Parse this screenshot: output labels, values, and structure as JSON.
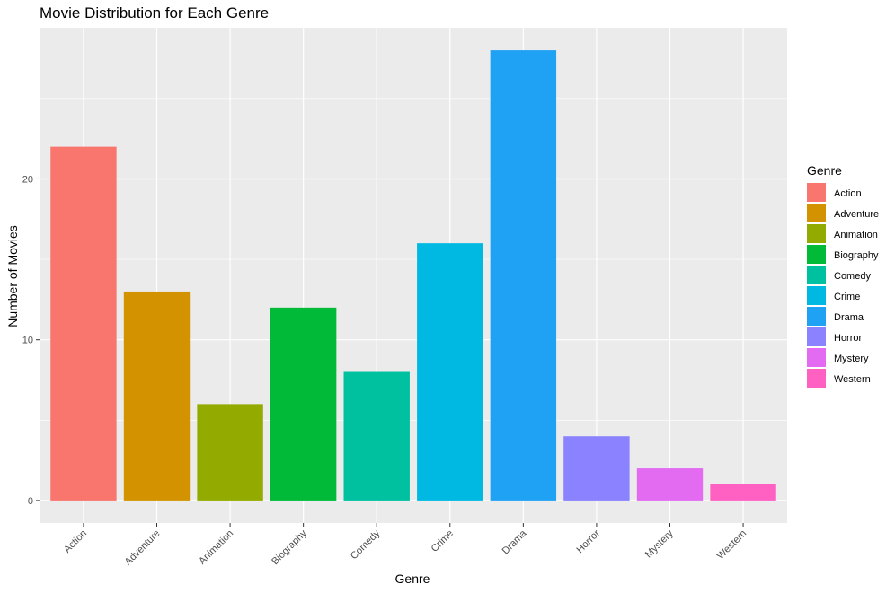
{
  "chart_data": {
    "type": "bar",
    "title": "Movie Distribution for Each Genre",
    "xlabel": "Genre",
    "ylabel": "Number of Movies",
    "categories": [
      "Action",
      "Adventure",
      "Animation",
      "Biography",
      "Comedy",
      "Crime",
      "Drama",
      "Horror",
      "Mystery",
      "Western"
    ],
    "values": [
      22,
      13,
      6,
      12,
      8,
      16,
      28,
      4,
      2,
      1
    ],
    "colors": [
      "#F8766D",
      "#D39200",
      "#93AA00",
      "#00BA38",
      "#00C19F",
      "#00B9E3",
      "#1FA2F4",
      "#8A82FF",
      "#E26BF2",
      "#FF61C3"
    ],
    "ylim": [
      -1.4,
      29.4
    ],
    "yticks": [
      0,
      10,
      20
    ],
    "grid": true,
    "panel_background": "#EBEBEB",
    "legend": {
      "title": "Genre",
      "position": "right",
      "entries": [
        "Action",
        "Adventure",
        "Animation",
        "Biography",
        "Comedy",
        "Crime",
        "Drama",
        "Horror",
        "Mystery",
        "Western"
      ]
    }
  }
}
